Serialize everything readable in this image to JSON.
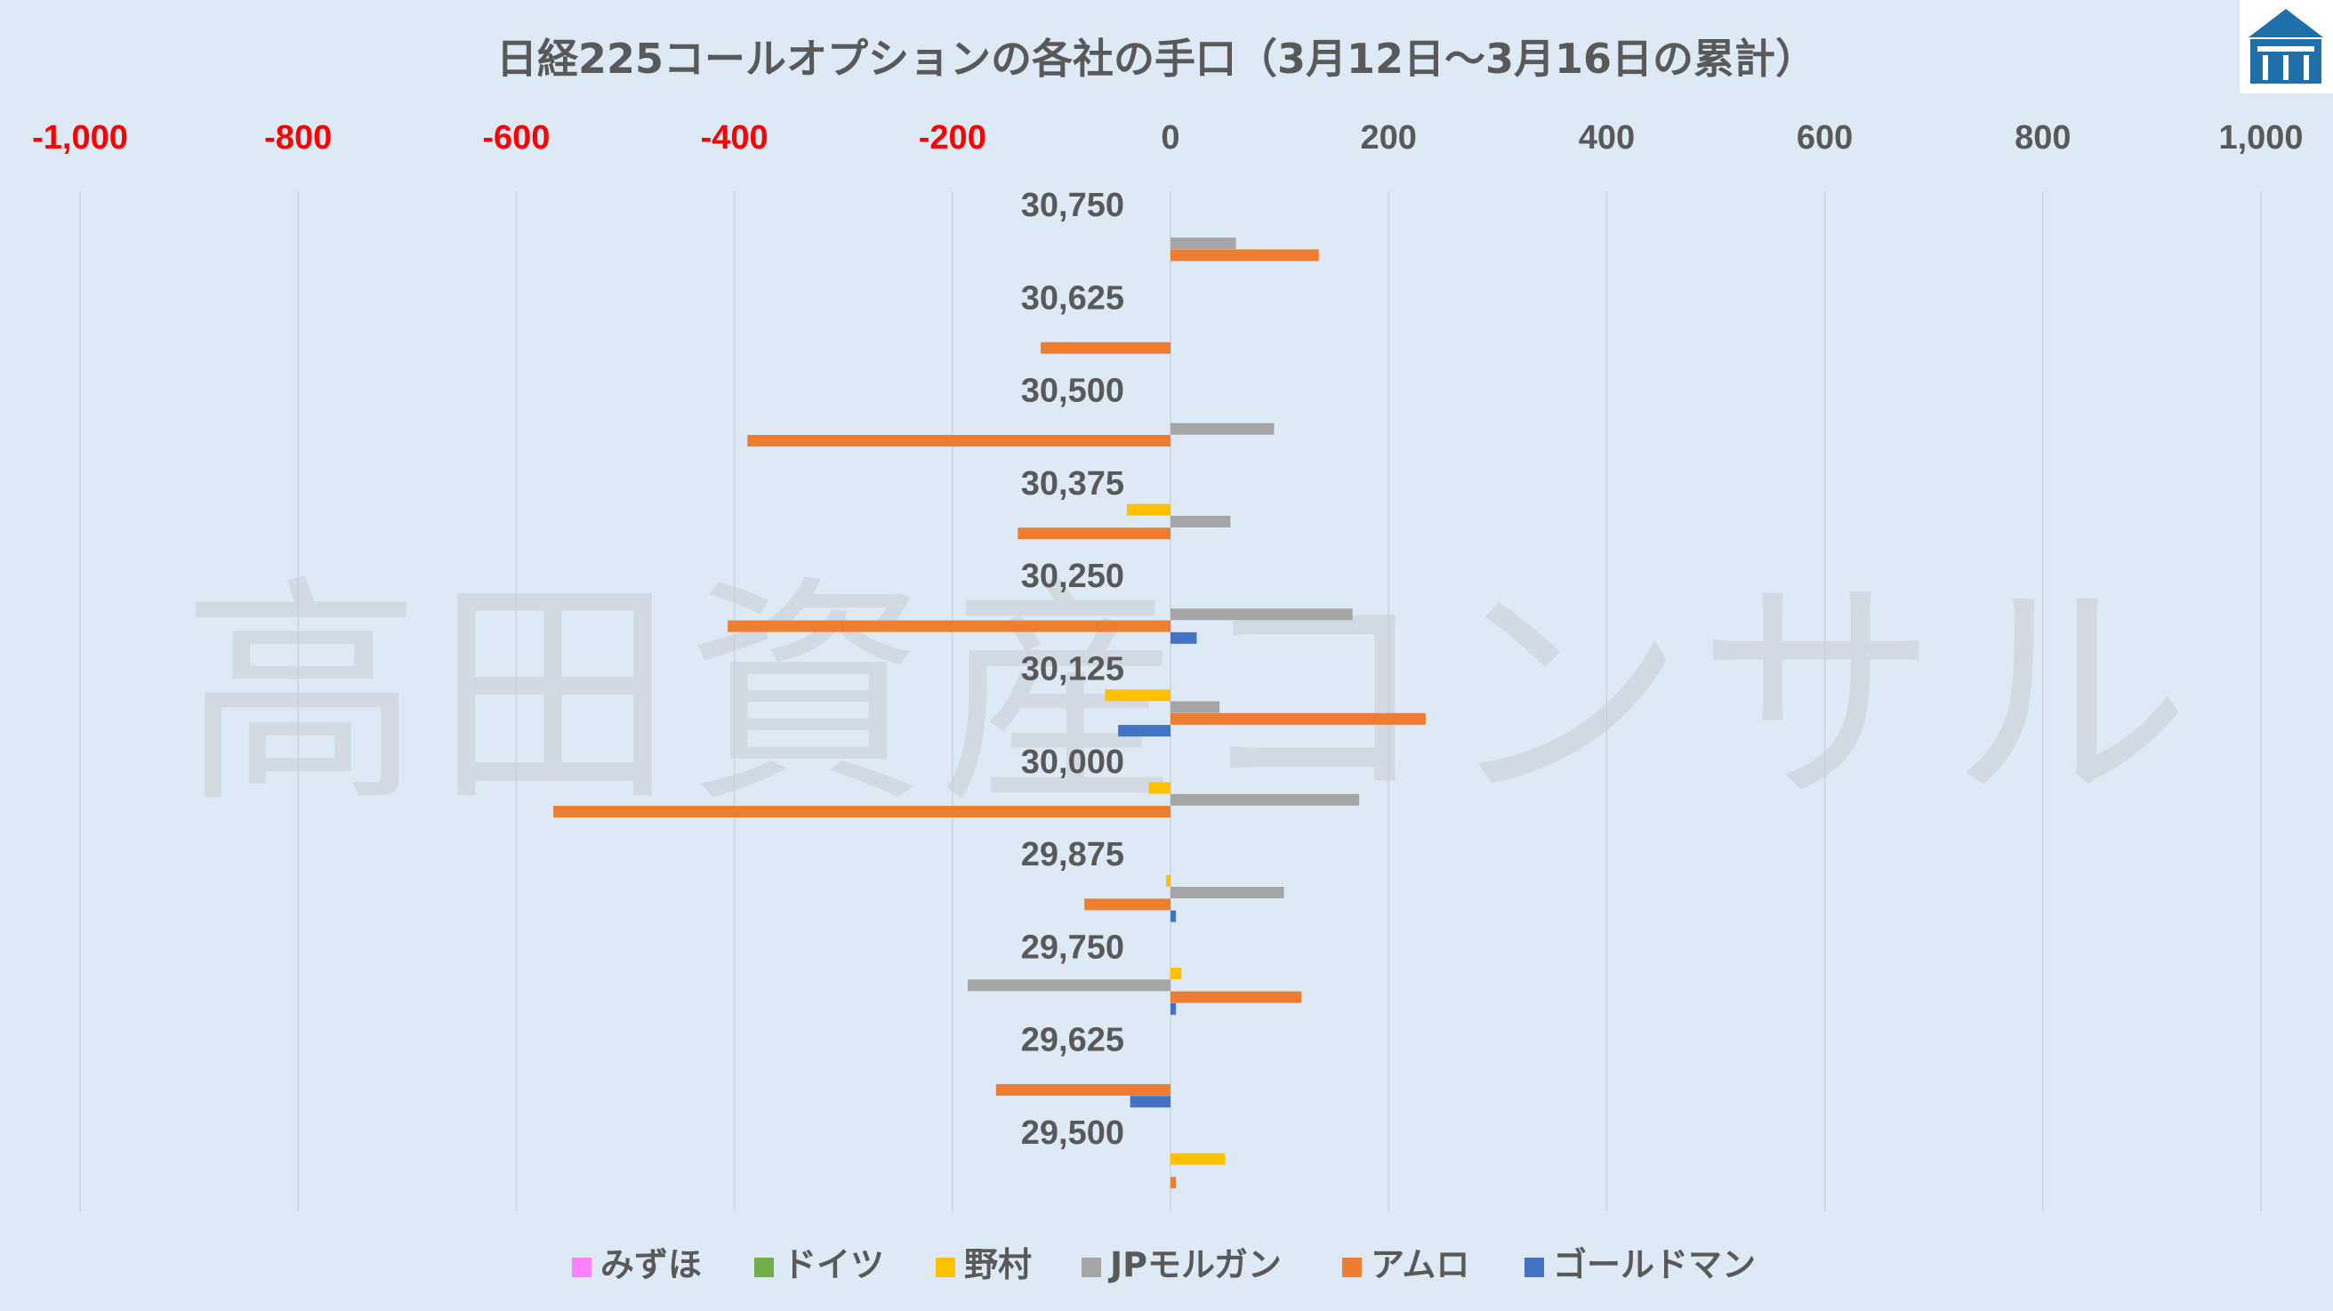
{
  "logo": {
    "name": "logo-icon"
  },
  "watermark": "高田資産コンサル",
  "chart_data": {
    "type": "bar",
    "orientation": "horizontal",
    "title": "日経225コールオプションの各社の手口（3月12日～3月16日の累計）",
    "xlim": [
      -1000,
      1000
    ],
    "x_ticks": [
      -1000,
      -800,
      -600,
      -400,
      -200,
      0,
      200,
      400,
      600,
      800,
      1000
    ],
    "x_tick_labels": [
      "-1,000",
      "-800",
      "-600",
      "-400",
      "-200",
      "0",
      "200",
      "400",
      "600",
      "800",
      "1,000"
    ],
    "negative_tick_color": "#ff0000",
    "positive_tick_color": "#595959",
    "grid": true,
    "legend_position": "bottom",
    "categories": [
      "30,750",
      "30,625",
      "30,500",
      "30,375",
      "30,250",
      "30,125",
      "30,000",
      "29,875",
      "29,750",
      "29,625",
      "29,500"
    ],
    "series": [
      {
        "name": "みずほ",
        "color": "#ff80ff",
        "values": [
          0,
          0,
          0,
          0,
          0,
          0,
          0,
          0,
          0,
          0,
          0
        ]
      },
      {
        "name": "ドイツ",
        "color": "#70ad47",
        "values": [
          0,
          0,
          0,
          0,
          0,
          0,
          0,
          0,
          0,
          0,
          0
        ]
      },
      {
        "name": "野村",
        "color": "#ffc000",
        "values": [
          0,
          0,
          0,
          -40,
          0,
          -60,
          -20,
          -4,
          10,
          0,
          50
        ]
      },
      {
        "name": "JPモルガン",
        "color": "#a5a5a5",
        "values": [
          60,
          0,
          95,
          55,
          167,
          45,
          173,
          104,
          -186,
          0,
          0
        ]
      },
      {
        "name": "アムロ",
        "color": "#ed7d31",
        "values": [
          136,
          -119,
          -388,
          -140,
          -406,
          234,
          -566,
          -79,
          120,
          -160,
          5
        ]
      },
      {
        "name": "ゴールドマン",
        "color": "#4472c4",
        "values": [
          0,
          0,
          0,
          0,
          24,
          -48,
          0,
          5,
          5,
          -37,
          0
        ]
      }
    ]
  }
}
